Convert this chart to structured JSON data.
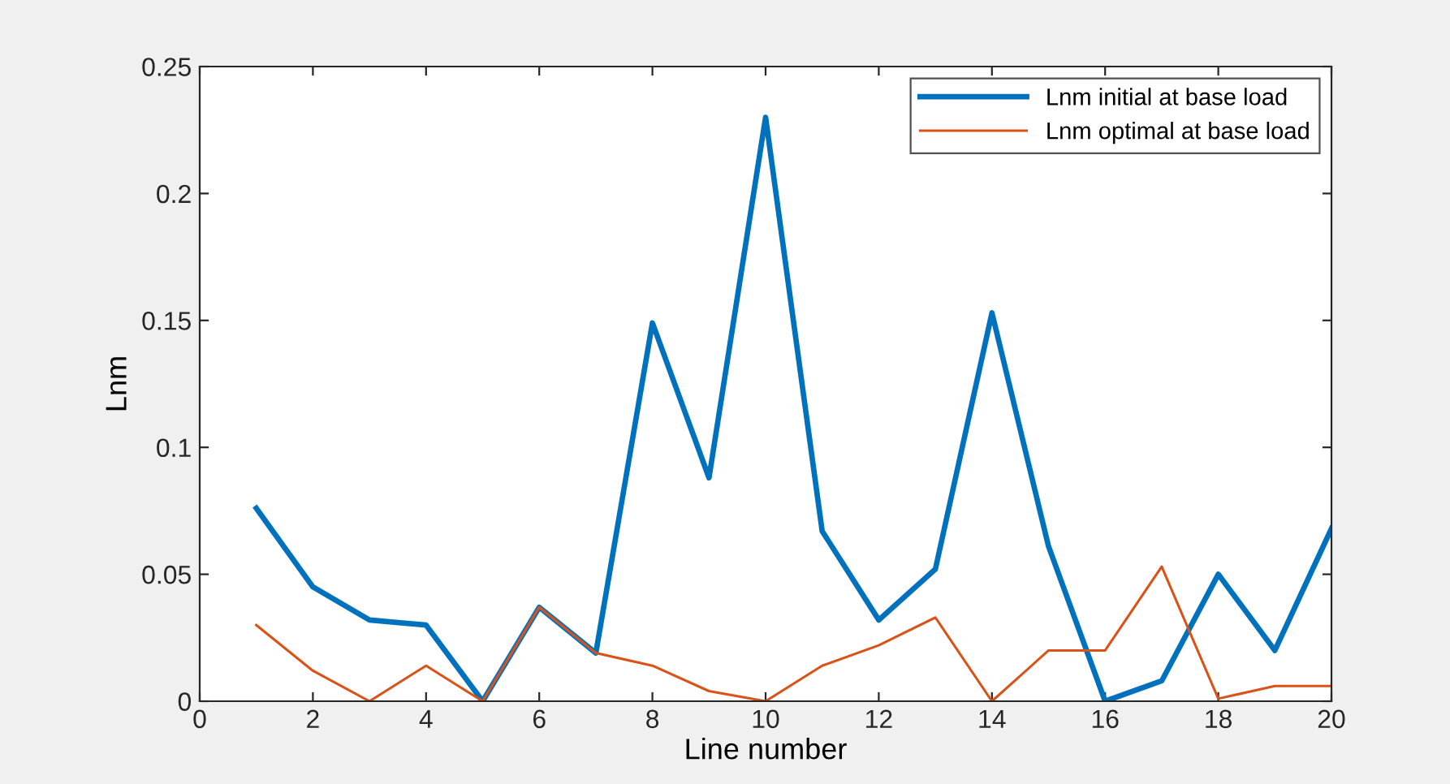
{
  "chart_data": {
    "type": "line",
    "xlabel": "Line number",
    "ylabel": "Lnm",
    "x": [
      1,
      2,
      3,
      4,
      5,
      6,
      7,
      8,
      9,
      10,
      11,
      12,
      13,
      14,
      15,
      16,
      17,
      18,
      19,
      20
    ],
    "series": [
      {
        "name": "Lnm initial at base load",
        "color": "#0072bd",
        "values": [
          0.076,
          0.045,
          0.032,
          0.03,
          0.0,
          0.037,
          0.019,
          0.149,
          0.088,
          0.23,
          0.067,
          0.032,
          0.052,
          0.153,
          0.061,
          0.0,
          0.008,
          0.05,
          0.02,
          0.068
        ]
      },
      {
        "name": "Lnm optimal at base load",
        "color": "#d95319",
        "values": [
          0.03,
          0.012,
          0.0,
          0.014,
          0.0,
          0.037,
          0.019,
          0.014,
          0.004,
          0.0,
          0.014,
          0.022,
          0.033,
          0.0,
          0.02,
          0.02,
          0.053,
          0.001,
          0.006,
          0.006
        ]
      }
    ],
    "xlim": [
      0,
      20
    ],
    "xticks": [
      0,
      2,
      4,
      6,
      8,
      10,
      12,
      14,
      16,
      18,
      20
    ],
    "ylim": [
      0,
      0.25
    ],
    "yticks": [
      0,
      0.05,
      0.1,
      0.15,
      0.2,
      0.25
    ],
    "grid": false,
    "legend": "top right",
    "marker": "none",
    "line_style": "solid"
  }
}
